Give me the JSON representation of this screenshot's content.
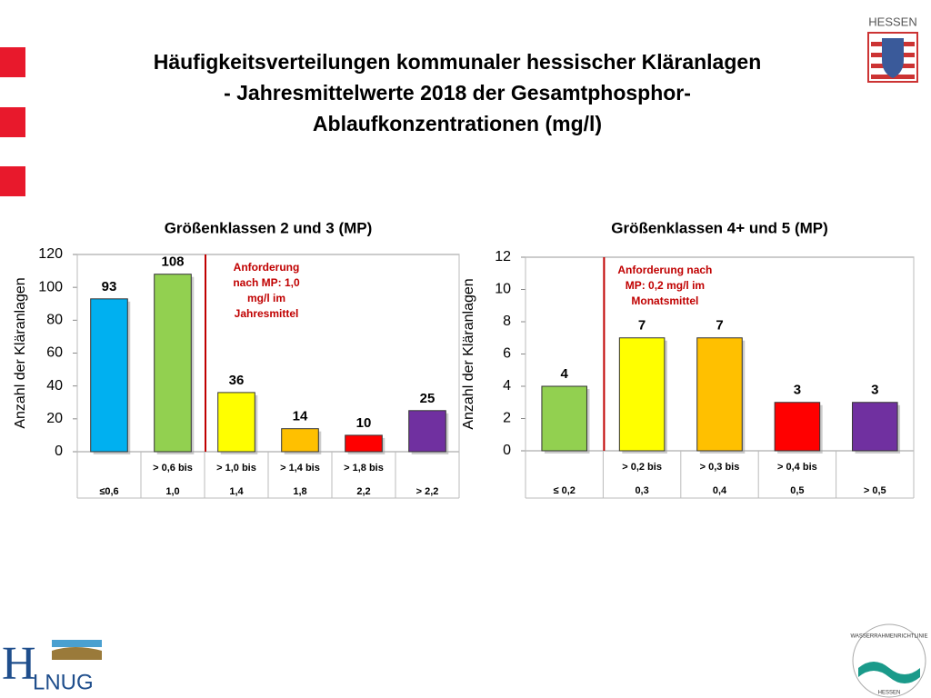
{
  "header": {
    "title": [
      "Häufigkeitsverteilungen kommunaler hessischer Kläranlagen",
      "- Jahresmittelwerte 2018 der Gesamtphosphor-",
      "Ablaufkonzentrationen (mg/l)"
    ],
    "state_logo": "HESSEN"
  },
  "chart_data": [
    {
      "type": "bar",
      "title": "Größenklassen 2 und 3 (MP)",
      "y_label": "Anzahl der Kläranlagen",
      "categories": [
        [
          null,
          "≤0,6"
        ],
        [
          "> 0,6 bis",
          "1,0"
        ],
        [
          "> 1,0 bis",
          "1,4"
        ],
        [
          "> 1,4 bis",
          "1,8"
        ],
        [
          "> 1,8 bis",
          "2,2"
        ],
        [
          null,
          "> 2,2"
        ]
      ],
      "values": [
        93,
        108,
        36,
        14,
        10,
        25
      ],
      "colors": [
        "#00b0f0",
        "#92d050",
        "#ffff00",
        "#ffc000",
        "#ff0000",
        "#7030a0"
      ],
      "ylim": [
        0,
        120
      ],
      "yticks": [
        0,
        20,
        40,
        60,
        80,
        100,
        120
      ],
      "annotation": {
        "text": [
          "Anforderung",
          "nach MP: 1,0",
          "mg/l im",
          "Jahresmittel"
        ],
        "after_category": 1,
        "color": "#c00000"
      }
    },
    {
      "type": "bar",
      "title": "Größenklassen 4+ und 5 (MP)",
      "y_label": "Anzahl der Kläranlagen",
      "categories": [
        [
          null,
          "≤ 0,2"
        ],
        [
          "> 0,2 bis",
          "0,3"
        ],
        [
          "> 0,3 bis",
          "0,4"
        ],
        [
          "> 0,4 bis",
          "0,5"
        ],
        [
          null,
          "> 0,5"
        ]
      ],
      "values": [
        4,
        7,
        7,
        3,
        3
      ],
      "colors": [
        "#92d050",
        "#ffff00",
        "#ffc000",
        "#ff0000",
        "#7030a0"
      ],
      "ylim": [
        0,
        12
      ],
      "yticks": [
        0,
        2,
        4,
        6,
        8,
        10,
        12
      ],
      "annotation": {
        "text": [
          "Anforderung nach",
          "MP: 0,2 mg/l im",
          "Monatsmittel"
        ],
        "after_category": 0,
        "color": "#c00000"
      }
    }
  ],
  "footer": {
    "agency_logo": [
      "H",
      "LNUG"
    ],
    "wrrl_logo": [
      "WASSERRAHMENRICHTLINIE",
      "HESSEN"
    ]
  }
}
